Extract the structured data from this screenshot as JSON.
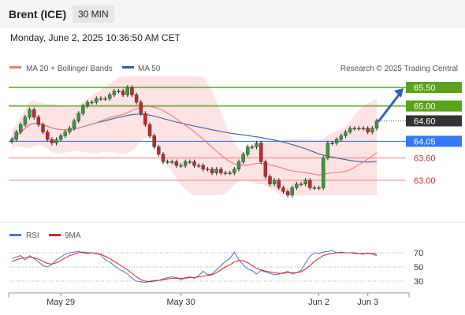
{
  "header": {
    "title": "Brent (ICE)",
    "timeframe": "30 MIN"
  },
  "datetime": "Monday, June 2, 2025 10:36:50 AM CET",
  "legend": {
    "ma_label": "MA 20 + Bollinger Bands",
    "ma50_label": "MA 50",
    "credit": "Research © 2025 Trading Central"
  },
  "rsi_legend": {
    "rsi_label": "RSI",
    "ma9_label": "9MA"
  },
  "colors": {
    "ma20": "#f07b7b",
    "ma50": "#3b5b9a",
    "band": "#fde0e0",
    "green": "#5aa31e",
    "blue_level": "#3478f6",
    "red_level": "#f08080",
    "arrow": "#2f63ad",
    "last": "#333333"
  },
  "chart_data": {
    "type": "candlestick",
    "x_ticks": [
      "May 29",
      "May 30",
      "Jun 2",
      "Jun 3"
    ],
    "y_range": [
      62.6,
      65.8
    ],
    "levels": [
      {
        "label": "65.50",
        "value": 65.5,
        "kind": "resistance"
      },
      {
        "label": "65.00",
        "value": 65.0,
        "kind": "resistance"
      },
      {
        "label": "64.60",
        "value": 64.6,
        "kind": "last"
      },
      {
        "label": "64.05",
        "value": 64.05,
        "kind": "pivot"
      },
      {
        "label": "63.60",
        "value": 63.6,
        "kind": "support"
      },
      {
        "label": "63.00",
        "value": 63.0,
        "kind": "support"
      }
    ],
    "close": [
      64.1,
      64.3,
      64.5,
      64.7,
      64.9,
      64.7,
      64.5,
      64.3,
      64.1,
      64.0,
      64.1,
      64.2,
      64.3,
      64.4,
      64.6,
      64.8,
      65.0,
      65.1,
      65.1,
      65.2,
      65.2,
      65.2,
      65.3,
      65.4,
      65.4,
      65.3,
      65.5,
      65.3,
      65.1,
      64.8,
      64.5,
      64.2,
      63.9,
      63.7,
      63.5,
      63.5,
      63.5,
      63.4,
      63.4,
      63.5,
      63.5,
      63.4,
      63.4,
      63.3,
      63.3,
      63.2,
      63.3,
      63.2,
      63.2,
      63.2,
      63.3,
      63.5,
      63.7,
      63.9,
      63.9,
      64.0,
      63.5,
      63.1,
      62.9,
      63.0,
      62.8,
      62.7,
      62.6,
      62.8,
      62.9,
      62.9,
      63.0,
      62.8,
      62.8,
      62.8,
      63.6,
      64.0,
      64.0,
      64.1,
      64.2,
      64.3,
      64.4,
      64.4,
      64.4,
      64.4,
      64.3,
      64.4,
      64.6
    ]
  },
  "rsi_data": {
    "y_ticks": [
      "70",
      "50",
      "30"
    ],
    "rsi": [
      62,
      64,
      66,
      60,
      66,
      62,
      57,
      52,
      50,
      54,
      60,
      64,
      68,
      70,
      71,
      72,
      70,
      69,
      70,
      69,
      67,
      60,
      57,
      52,
      47,
      44,
      40,
      34,
      30,
      29,
      28,
      30,
      31,
      31,
      33,
      35,
      36,
      35,
      32,
      35,
      36,
      34,
      38,
      44,
      39,
      40,
      46,
      52,
      58,
      62,
      71,
      60,
      53,
      47,
      45,
      40,
      45,
      43,
      41,
      39,
      40,
      42,
      44,
      40,
      42,
      45,
      56,
      65,
      70,
      69,
      71,
      72,
      73,
      70,
      71,
      70,
      70,
      69,
      69,
      68,
      70,
      68,
      66
    ],
    "ma9": [
      58,
      60,
      62,
      63,
      64,
      63,
      61,
      58,
      55,
      54,
      56,
      59,
      63,
      66,
      68,
      70,
      71,
      70,
      70,
      69,
      68,
      65,
      62,
      58,
      54,
      50,
      46,
      41,
      36,
      32,
      30,
      29,
      30,
      31,
      32,
      33,
      34,
      34,
      34,
      34,
      35,
      35,
      36,
      37,
      38,
      39,
      42,
      46,
      50,
      53,
      57,
      59,
      59,
      56,
      52,
      48,
      46,
      44,
      43,
      42,
      41,
      41,
      42,
      42,
      42,
      43,
      47,
      52,
      58,
      62,
      66,
      68,
      69,
      70,
      70,
      70,
      70,
      70,
      69,
      69,
      69,
      69,
      68
    ]
  }
}
